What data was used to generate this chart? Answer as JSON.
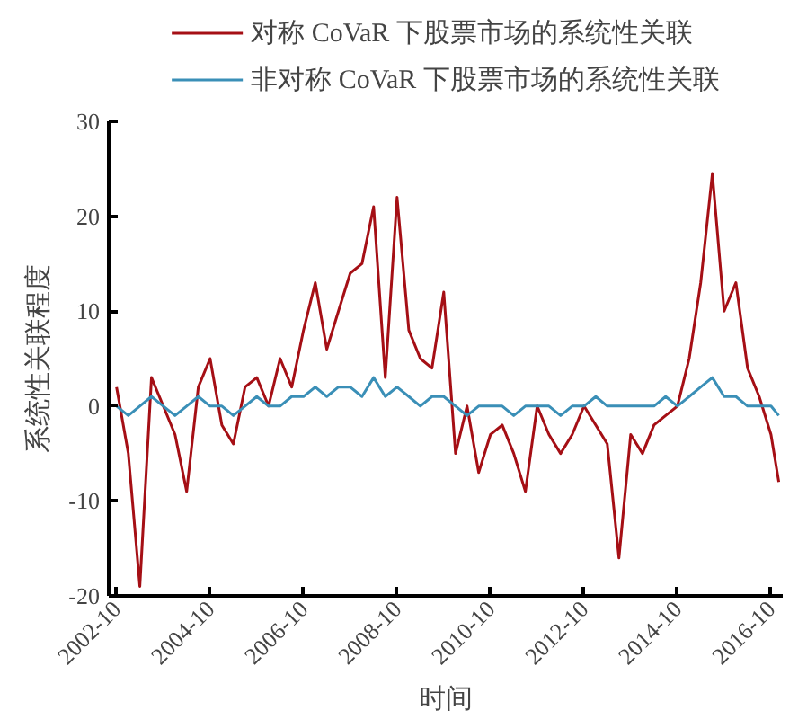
{
  "chart_data": {
    "type": "line",
    "xlabel": "时间",
    "ylabel": "系统性关联程度",
    "x": [
      "2002-10",
      "2003-01",
      "2003-04",
      "2003-07",
      "2003-10",
      "2004-01",
      "2004-04",
      "2004-07",
      "2004-10",
      "2005-01",
      "2005-04",
      "2005-07",
      "2005-10",
      "2006-01",
      "2006-04",
      "2006-07",
      "2006-10",
      "2007-01",
      "2007-04",
      "2007-07",
      "2007-10",
      "2008-01",
      "2008-04",
      "2008-07",
      "2008-10",
      "2009-01",
      "2009-04",
      "2009-07",
      "2009-10",
      "2010-01",
      "2010-04",
      "2010-07",
      "2010-10",
      "2011-01",
      "2011-04",
      "2011-07",
      "2011-10",
      "2012-01",
      "2012-04",
      "2012-07",
      "2012-10",
      "2013-01",
      "2013-04",
      "2013-07",
      "2013-10",
      "2014-01",
      "2014-04",
      "2014-07",
      "2014-10",
      "2015-01",
      "2015-04",
      "2015-07",
      "2015-10",
      "2016-01",
      "2016-04",
      "2016-07",
      "2016-10",
      "2016-12"
    ],
    "series": [
      {
        "name": "对称 CoVaR 下股票市场的系统性关联",
        "color": "#a50f15",
        "values": [
          2,
          -5,
          -19,
          3,
          0,
          -3,
          -9,
          2,
          5,
          -2,
          -4,
          2,
          3,
          0,
          5,
          2,
          8,
          13,
          6,
          10,
          14,
          15,
          21,
          3,
          22,
          8,
          5,
          4,
          12,
          -5,
          0,
          -7,
          -3,
          -2,
          -5,
          -9,
          0,
          -3,
          -5,
          -3,
          0,
          -2,
          -4,
          -16,
          -3,
          -5,
          -2,
          -1,
          0,
          5,
          13,
          24.5,
          10,
          13,
          4,
          1,
          -3,
          -8
        ]
      },
      {
        "name": "非对称 CoVaR 下股票市场的系统性关联",
        "color": "#3a8fb7",
        "values": [
          0,
          -1,
          0,
          1,
          0,
          -1,
          0,
          1,
          0,
          0,
          -1,
          0,
          1,
          0,
          0,
          1,
          1,
          2,
          1,
          2,
          2,
          1,
          3,
          1,
          2,
          1,
          0,
          1,
          1,
          0,
          -1,
          0,
          0,
          0,
          -1,
          0,
          0,
          0,
          -1,
          0,
          0,
          1,
          0,
          0,
          0,
          0,
          0,
          1,
          0,
          1,
          2,
          3,
          1,
          1,
          0,
          0,
          0,
          -1
        ]
      }
    ],
    "ylim": [
      -20,
      30
    ],
    "yticks": [
      -20,
      -10,
      0,
      10,
      20,
      30
    ],
    "xlim": [
      "2002-08",
      "2017-01"
    ],
    "xticks": [
      "2002-10",
      "2004-10",
      "2006-10",
      "2008-10",
      "2010-10",
      "2012-10",
      "2014-10",
      "2016-10"
    ],
    "legend": "top",
    "grid": false,
    "marker": "none",
    "line_style": "solid"
  }
}
